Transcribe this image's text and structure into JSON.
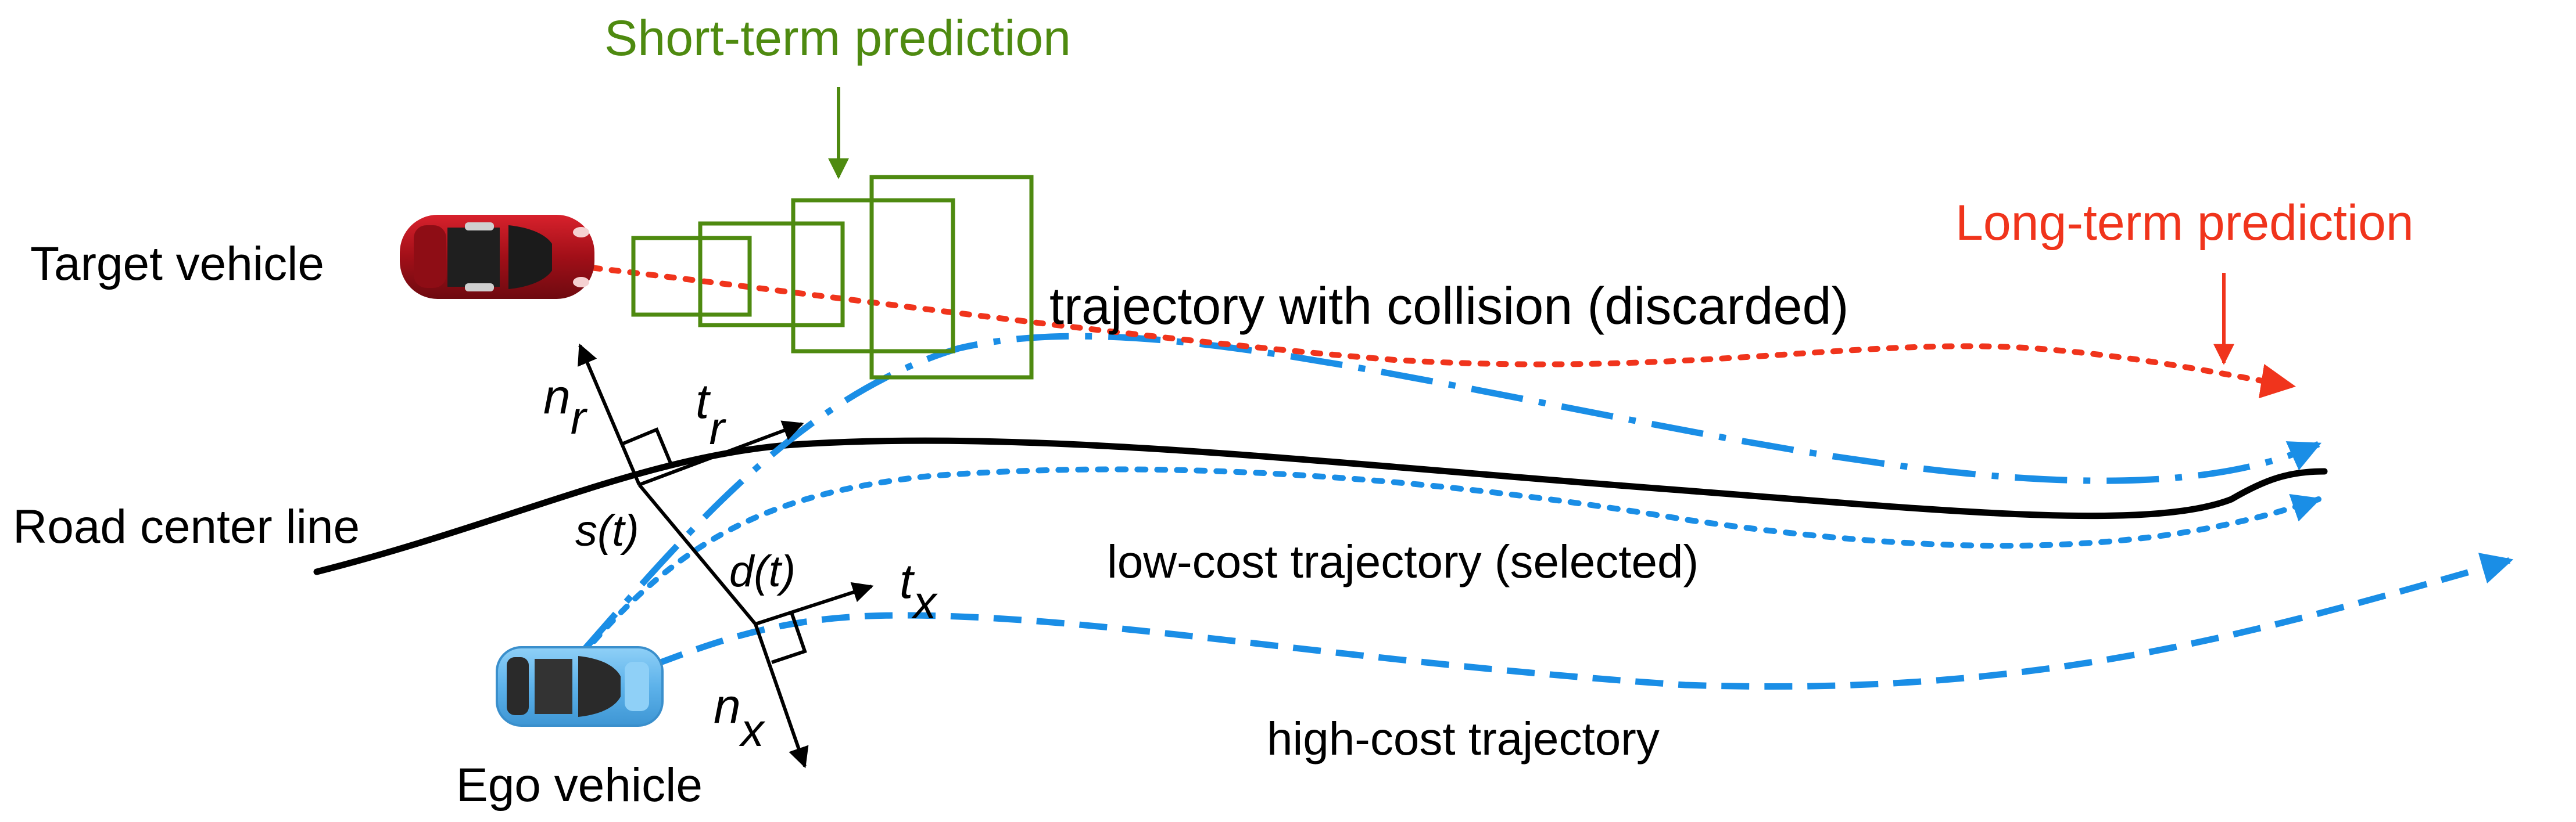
{
  "labels": {
    "short_term_prediction": "Short-term prediction",
    "long_term_prediction": "Long-term prediction",
    "target_vehicle": "Target vehicle",
    "road_center_line": "Road center line",
    "ego_vehicle": "Ego vehicle",
    "trajectory_collision": "trajectory with collision (discarded)",
    "low_cost_trajectory": "low-cost trajectory (selected)",
    "high_cost_trajectory": "high-cost trajectory"
  },
  "frame_labels": {
    "n": "n",
    "t": "t",
    "r": "r",
    "x": "x",
    "s": "s(t)",
    "d": "d(t)"
  },
  "colors": {
    "short_term": "#4e8a10",
    "long_term": "#f0341c",
    "trajectory_blue": "#1a8ee6",
    "road": "#000000",
    "target_car": "#b3111b",
    "ego_car": "#6ab8ec"
  },
  "icons": {
    "target_vehicle": "red-car-icon",
    "ego_vehicle": "blue-car-icon"
  }
}
